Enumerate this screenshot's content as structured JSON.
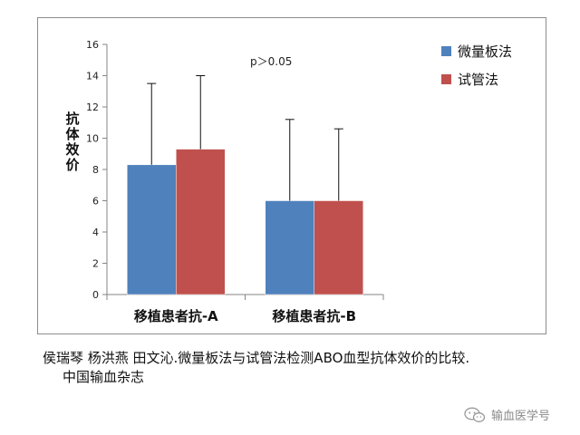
{
  "chart_data": {
    "type": "bar",
    "categories": [
      "移植患者抗-A",
      "移植患者抗-B"
    ],
    "series": [
      {
        "name": "微量板法",
        "color": "#4f81bd",
        "values": [
          8.3,
          6.0
        ],
        "error": [
          5.2,
          5.2
        ]
      },
      {
        "name": "试管法",
        "color": "#c0504d",
        "values": [
          9.3,
          6.0
        ],
        "error": [
          4.7,
          4.6
        ]
      }
    ],
    "ylabel": "抗体效价",
    "ylim": [
      0,
      16
    ],
    "yticks": [
      "0",
      "2",
      "4",
      "6",
      "8",
      "10",
      "12",
      "14",
      "16"
    ],
    "annotation": "p＞0.05",
    "legend": "right",
    "grid": false
  },
  "caption": {
    "line1": "侯瑞琴 杨洪燕 田文沁.微量板法与试管法检测ABO血型抗体效价的比较.",
    "line2": "中国输血杂志"
  },
  "watermark": {
    "icon": "wechat-icon",
    "text": "输血医学号"
  }
}
